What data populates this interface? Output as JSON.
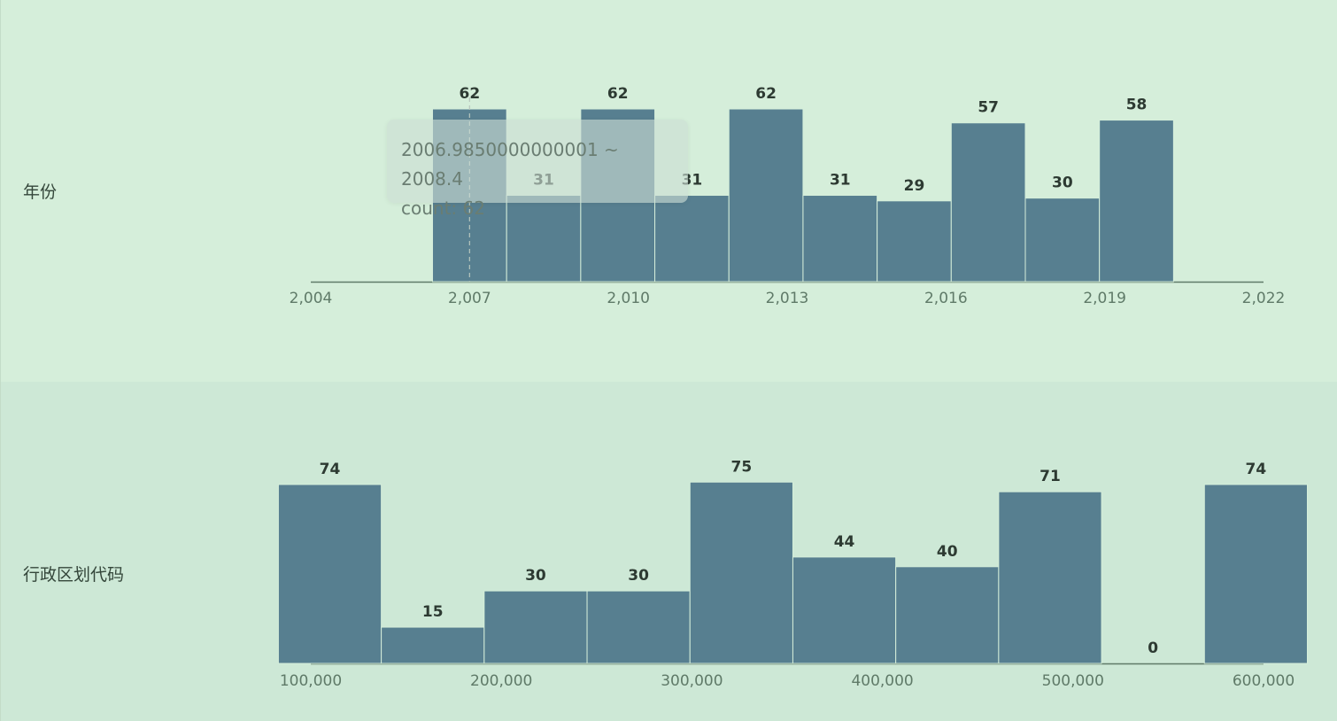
{
  "rows": [
    {
      "label": "年份"
    },
    {
      "label": "行政区划代码"
    }
  ],
  "tooltip": {
    "range": "2006.9850000000001 ~ 2008.4",
    "count_label": "count:",
    "count_value": "62"
  },
  "colors": {
    "bar": "#577f90",
    "bar_stroke": "#d5eeda",
    "axis": "#5f7a68"
  },
  "chart_data": [
    {
      "type": "bar",
      "subtype": "histogram",
      "title": "年份",
      "xlim": [
        2004,
        2022
      ],
      "x_ticks": [
        2004,
        2007,
        2010,
        2013,
        2016,
        2019,
        2022
      ],
      "x_tick_labels": [
        "2,004",
        "2,007",
        "2,010",
        "2,013",
        "2,016",
        "2,019",
        "2,022"
      ],
      "bins": [
        {
          "x0": 2006.3,
          "x1": 2007.7,
          "count": 62
        },
        {
          "x0": 2007.7,
          "x1": 2009.1,
          "count": 31
        },
        {
          "x0": 2009.1,
          "x1": 2010.5,
          "count": 62
        },
        {
          "x0": 2010.5,
          "x1": 2011.9,
          "count": 31
        },
        {
          "x0": 2011.9,
          "x1": 2013.3,
          "count": 62
        },
        {
          "x0": 2013.3,
          "x1": 2014.7,
          "count": 31
        },
        {
          "x0": 2014.7,
          "x1": 2016.1,
          "count": 29
        },
        {
          "x0": 2016.1,
          "x1": 2017.5,
          "count": 57
        },
        {
          "x0": 2017.5,
          "x1": 2018.9,
          "count": 30
        },
        {
          "x0": 2018.9,
          "x1": 2020.3,
          "count": 58
        }
      ],
      "hover_x": 2007
    },
    {
      "type": "bar",
      "subtype": "histogram",
      "title": "行政区划代码",
      "xlim": [
        100000,
        600000
      ],
      "x_ticks": [
        100000,
        200000,
        300000,
        400000,
        500000,
        600000
      ],
      "x_tick_labels": [
        "100,000",
        "200,000",
        "300,000",
        "400,000",
        "500,000",
        "600,000"
      ],
      "bins": [
        {
          "x0": 83000,
          "x1": 137000,
          "count": 74
        },
        {
          "x0": 137000,
          "x1": 191000,
          "count": 15
        },
        {
          "x0": 191000,
          "x1": 245000,
          "count": 30
        },
        {
          "x0": 245000,
          "x1": 299000,
          "count": 30
        },
        {
          "x0": 299000,
          "x1": 353000,
          "count": 75
        },
        {
          "x0": 353000,
          "x1": 407000,
          "count": 44
        },
        {
          "x0": 407000,
          "x1": 461000,
          "count": 40
        },
        {
          "x0": 461000,
          "x1": 515000,
          "count": 71
        },
        {
          "x0": 515000,
          "x1": 569000,
          "count": 0
        },
        {
          "x0": 569000,
          "x1": 623000,
          "count": 74
        }
      ]
    }
  ]
}
